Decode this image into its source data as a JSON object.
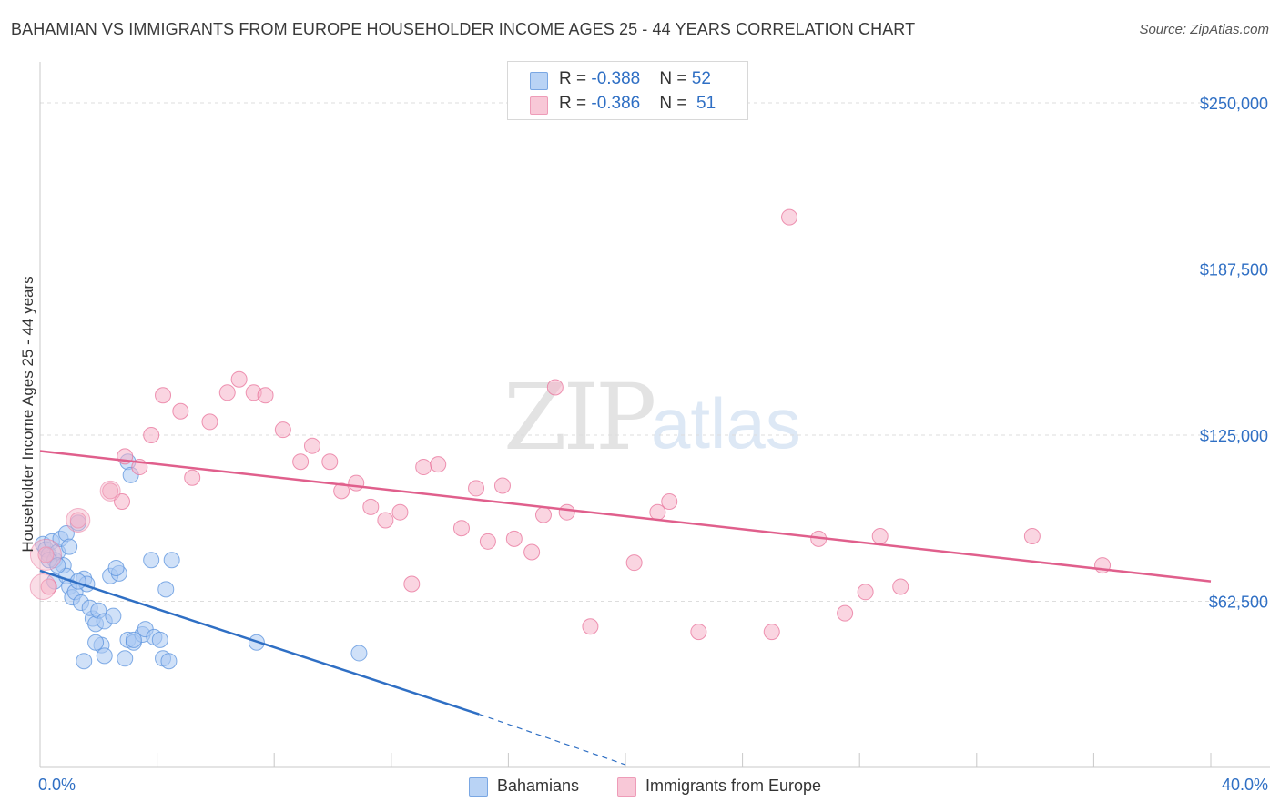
{
  "title": "BAHAMIAN VS IMMIGRANTS FROM EUROPE HOUSEHOLDER INCOME AGES 25 - 44 YEARS CORRELATION CHART",
  "source": "Source: ZipAtlas.com",
  "watermark": {
    "zip": "ZIP",
    "atlas": "atlas"
  },
  "legend": {
    "rows": [
      {
        "r_label": "R = ",
        "r_value": "-0.388",
        "n_label": "N = ",
        "n_value": "52",
        "color": "#a9c8f2"
      },
      {
        "r_label": "R = ",
        "r_value": "-0.386",
        "n_label": "N = ",
        "n_value": "51",
        "color": "#f5b3c8"
      }
    ]
  },
  "bottom_legend": [
    {
      "label": "Bahamians",
      "color": "#a9c8f2"
    },
    {
      "label": "Immigrants from Europe",
      "color": "#f5b3c8"
    }
  ],
  "chart_data": {
    "type": "scatter",
    "title": "BAHAMIAN VS IMMIGRANTS FROM EUROPE HOUSEHOLDER INCOME AGES 25 - 44 YEARS CORRELATION CHART",
    "xlabel": "",
    "ylabel": "Householder Income Ages 25 - 44 years",
    "x_tick_labels": [
      "0.0%",
      "40.0%"
    ],
    "y_tick_labels": [
      "$62,500",
      "$125,000",
      "$187,500",
      "$250,000"
    ],
    "y_ticks": [
      62500,
      125000,
      187500,
      250000
    ],
    "xlim": [
      0,
      40
    ],
    "ylim": [
      0,
      262000
    ],
    "grid": true,
    "legend_position": "top-center",
    "series": [
      {
        "name": "Bahamians",
        "color": "#5b93dd",
        "fill": "#a9c8f2",
        "trend": {
          "x0": 0,
          "y0": 74000,
          "x1": 15,
          "y1": 20000,
          "dash_to_x": 20,
          "dash_to_y": 1000
        },
        "points": [
          [
            0.1,
            84000
          ],
          [
            0.2,
            82000
          ],
          [
            0.3,
            80000
          ],
          [
            0.4,
            85000
          ],
          [
            0.5,
            78000
          ],
          [
            0.6,
            81000
          ],
          [
            0.7,
            86000
          ],
          [
            0.5,
            70000
          ],
          [
            0.8,
            76000
          ],
          [
            0.9,
            72000
          ],
          [
            1.0,
            68000
          ],
          [
            1.1,
            64000
          ],
          [
            1.2,
            66000
          ],
          [
            1.3,
            92000
          ],
          [
            0.9,
            88000
          ],
          [
            1.0,
            83000
          ],
          [
            1.5,
            71000
          ],
          [
            1.6,
            69000
          ],
          [
            1.4,
            62000
          ],
          [
            1.8,
            56000
          ],
          [
            1.9,
            54000
          ],
          [
            1.7,
            60000
          ],
          [
            2.0,
            59000
          ],
          [
            2.2,
            55000
          ],
          [
            2.5,
            57000
          ],
          [
            2.4,
            72000
          ],
          [
            2.7,
            73000
          ],
          [
            2.6,
            75000
          ],
          [
            3.0,
            48000
          ],
          [
            3.2,
            47000
          ],
          [
            3.5,
            50000
          ],
          [
            3.6,
            52000
          ],
          [
            2.1,
            46000
          ],
          [
            1.5,
            40000
          ],
          [
            2.2,
            42000
          ],
          [
            3.9,
            49000
          ],
          [
            4.1,
            48000
          ],
          [
            3.8,
            78000
          ],
          [
            4.5,
            78000
          ],
          [
            4.3,
            67000
          ],
          [
            4.2,
            41000
          ],
          [
            4.4,
            40000
          ],
          [
            3.0,
            115000
          ],
          [
            3.1,
            110000
          ],
          [
            7.4,
            47000
          ],
          [
            10.9,
            43000
          ],
          [
            0.3,
            78000
          ],
          [
            1.3,
            70000
          ],
          [
            2.9,
            41000
          ],
          [
            1.9,
            47000
          ],
          [
            3.2,
            48000
          ],
          [
            0.6,
            76000
          ]
        ]
      },
      {
        "name": "Immigrants from Europe",
        "color": "#e8729a",
        "fill": "#f5b3c8",
        "trend": {
          "x0": 0,
          "y0": 119000,
          "x1": 40,
          "y1": 70000
        },
        "points": [
          [
            0.2,
            80000
          ],
          [
            0.3,
            68000
          ],
          [
            1.3,
            93000
          ],
          [
            2.4,
            104000
          ],
          [
            2.8,
            100000
          ],
          [
            2.9,
            117000
          ],
          [
            3.4,
            113000
          ],
          [
            3.8,
            125000
          ],
          [
            4.2,
            140000
          ],
          [
            4.8,
            134000
          ],
          [
            5.2,
            109000
          ],
          [
            5.8,
            130000
          ],
          [
            6.4,
            141000
          ],
          [
            6.8,
            146000
          ],
          [
            7.3,
            141000
          ],
          [
            7.7,
            140000
          ],
          [
            8.3,
            127000
          ],
          [
            8.9,
            115000
          ],
          [
            9.3,
            121000
          ],
          [
            9.9,
            115000
          ],
          [
            10.3,
            104000
          ],
          [
            10.8,
            107000
          ],
          [
            11.3,
            98000
          ],
          [
            11.8,
            93000
          ],
          [
            12.3,
            96000
          ],
          [
            12.7,
            69000
          ],
          [
            13.1,
            113000
          ],
          [
            13.6,
            114000
          ],
          [
            14.4,
            90000
          ],
          [
            14.9,
            105000
          ],
          [
            15.3,
            85000
          ],
          [
            15.8,
            106000
          ],
          [
            16.2,
            86000
          ],
          [
            16.8,
            81000
          ],
          [
            17.2,
            95000
          ],
          [
            17.6,
            143000
          ],
          [
            18.0,
            96000
          ],
          [
            18.8,
            53000
          ],
          [
            20.3,
            77000
          ],
          [
            21.1,
            96000
          ],
          [
            21.5,
            100000
          ],
          [
            22.5,
            51000
          ],
          [
            25.0,
            51000
          ],
          [
            25.6,
            207000
          ],
          [
            26.6,
            86000
          ],
          [
            27.5,
            58000
          ],
          [
            28.2,
            66000
          ],
          [
            28.7,
            87000
          ],
          [
            29.4,
            68000
          ],
          [
            33.9,
            87000
          ],
          [
            36.3,
            76000
          ]
        ]
      }
    ]
  }
}
